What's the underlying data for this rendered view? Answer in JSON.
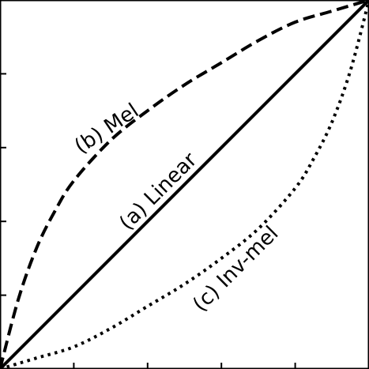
{
  "chart_data": {
    "type": "line",
    "title": "",
    "xlabel": "",
    "ylabel": "",
    "xlim": [
      0,
      1
    ],
    "ylim": [
      0,
      1
    ],
    "x_ticks": [
      0.2,
      0.4,
      0.6,
      0.8
    ],
    "y_ticks": [
      0.2,
      0.4,
      0.6,
      0.8
    ],
    "grid": false,
    "series": [
      {
        "name": "(a) Linear",
        "style": "solid",
        "color": "#000000",
        "points": [
          [
            0,
            0
          ],
          [
            1,
            1
          ]
        ]
      },
      {
        "name": "(b) Mel",
        "style": "dashed",
        "color": "#000000",
        "points": [
          [
            0,
            0
          ],
          [
            0.05,
            0.19
          ],
          [
            0.1,
            0.33
          ],
          [
            0.15,
            0.43
          ],
          [
            0.2,
            0.51
          ],
          [
            0.3,
            0.62
          ],
          [
            0.4,
            0.7
          ],
          [
            0.5,
            0.77
          ],
          [
            0.6,
            0.83
          ],
          [
            0.7,
            0.89
          ],
          [
            0.8,
            0.94
          ],
          [
            0.9,
            0.97
          ],
          [
            1,
            1
          ]
        ]
      },
      {
        "name": "(c) Inv-mel",
        "style": "dotted",
        "color": "#000000",
        "points": [
          [
            0,
            0
          ],
          [
            0.1,
            0.03
          ],
          [
            0.2,
            0.06
          ],
          [
            0.3,
            0.11
          ],
          [
            0.4,
            0.17
          ],
          [
            0.5,
            0.23
          ],
          [
            0.6,
            0.3
          ],
          [
            0.7,
            0.38
          ],
          [
            0.8,
            0.49
          ],
          [
            0.85,
            0.57
          ],
          [
            0.9,
            0.67
          ],
          [
            0.95,
            0.81
          ],
          [
            1,
            1
          ]
        ]
      }
    ],
    "annotations": [
      {
        "text": "(a) Linear",
        "series": "(a) Linear",
        "x": 0.43,
        "y": 0.48,
        "rotation_deg": -45
      },
      {
        "text": "(b) Mel",
        "series": "(b) Mel",
        "x": 0.29,
        "y": 0.65,
        "rotation_deg": -34
      },
      {
        "text": "(c) Inv-mel",
        "series": "(c) Inv-mel",
        "x": 0.64,
        "y": 0.27,
        "rotation_deg": -45
      }
    ]
  }
}
